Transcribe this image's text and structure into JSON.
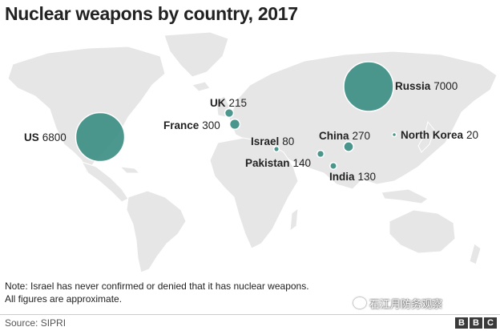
{
  "title": "Nuclear weapons by country, 2017",
  "countries": [
    {
      "name": "Russia",
      "warheads": 7000
    },
    {
      "name": "US",
      "warheads": 6800
    },
    {
      "name": "France",
      "warheads": 300
    },
    {
      "name": "China",
      "warheads": 270
    },
    {
      "name": "UK",
      "warheads": 215
    },
    {
      "name": "Pakistan",
      "warheads": 140
    },
    {
      "name": "India",
      "warheads": 130
    },
    {
      "name": "Israel",
      "warheads": 80
    },
    {
      "name": "North Korea",
      "warheads": 20
    }
  ],
  "colors": {
    "bubble": "#3d8f86",
    "land": "#e6e6e6"
  },
  "note_line1": "Note: Israel has never confirmed or denied that it has nuclear weapons.",
  "note_line2": "All figures are approximate.",
  "source": "Source: SIPRI",
  "watermark": "石江月防务观察",
  "logo": [
    "B",
    "B",
    "C"
  ]
}
